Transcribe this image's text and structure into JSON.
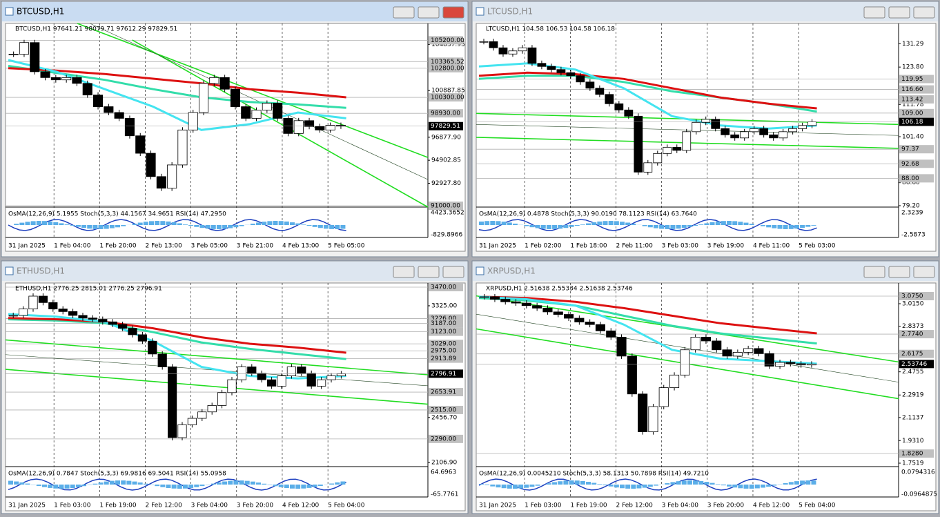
{
  "windows": [
    {
      "title": "BTCUSD,H1",
      "header": "BTCUSD,H1  97641.21 98079.71 97612.29 97829.51",
      "ylim": [
        90882,
        106642
      ],
      "price_ticks": [
        104837.95,
        100887.85,
        {
          "value": 96877.9,
          "label": "96877.90"
        },
        94902.85,
        {
          "value": 92927.8,
          "label": "92927.80"
        }
      ],
      "price_marks": [
        {
          "value": 105200,
          "label": "105200.00"
        },
        103365.52,
        {
          "value": 102800,
          "label": "102800.00"
        },
        {
          "value": 100300,
          "label": "100300.00"
        },
        {
          "value": 98930,
          "label": "98930.00"
        },
        {
          "value": 91000,
          "label": "91000.00"
        }
      ],
      "current": 97829.51,
      "closes": [
        104000,
        105000,
        102500,
        102000,
        101800,
        102000,
        101500,
        100500,
        99500,
        99000,
        98500,
        97000,
        95500,
        93500,
        92500,
        94500,
        97500,
        99000,
        101500,
        102000,
        101000,
        99500,
        98500,
        99200,
        99800,
        98500,
        97200,
        98300,
        97800,
        97500,
        97900,
        97829.51
      ],
      "ma": {
        "red": [
          102800,
          102600,
          102300,
          101900,
          101500,
          101000,
          100700,
          100300
        ],
        "cyan": [
          103500,
          102500,
          101000,
          99500,
          97500,
          98000,
          99000,
          98500
        ],
        "teal": [
          103000,
          102400,
          101800,
          101000,
          100300,
          99900,
          99700,
          99400
        ]
      },
      "indicator": {
        "label": "OsMA(12,26,9) 5.1955  Stoch(5,3,3) 44.1567 34.9651  RSI(14) 47.2950",
        "axis": [
          "4423.3652",
          "-829.8966"
        ]
      },
      "time_labels": [
        "31 Jan 2025",
        "1 Feb 04:00",
        "1 Feb 20:00",
        "2 Feb 13:00",
        "3 Feb 05:00",
        "3 Feb 21:00",
        "4 Feb 13:00",
        "5 Feb 05:00"
      ]
    },
    {
      "title": "LTCUSD,H1",
      "header": "LTCUSD,H1  104.58 106.53 104.58 106.18",
      "ylim": [
        78.75,
        137.83
      ],
      "price_ticks": [
        131.29,
        {
          "value": 123.8,
          "label": "123.80"
        },
        111.78,
        {
          "value": 101.4,
          "label": "101.40"
        },
        {
          "value": 86.6,
          "label": "86.60"
        },
        {
          "value": 79.2,
          "label": "79.20"
        }
      ],
      "price_marks": [
        119.95,
        {
          "value": 116.6,
          "label": "116.60"
        },
        113.42,
        {
          "value": 109,
          "label": "109.00"
        },
        97.37,
        92.68,
        {
          "value": 88,
          "label": "88.00"
        }
      ],
      "current": 106.18,
      "closes": [
        132,
        130,
        128,
        129,
        130,
        125,
        124,
        123,
        122,
        121,
        119,
        117,
        115,
        112,
        110,
        108,
        90,
        93,
        96,
        98,
        97,
        103,
        106,
        107,
        104,
        102,
        101,
        103,
        104,
        102,
        101,
        103,
        104,
        105,
        106.18
      ],
      "ma": {
        "red": [
          121,
          122,
          121.5,
          120,
          117,
          114,
          112,
          110.5
        ],
        "cyan": [
          124,
          125,
          123,
          117,
          108,
          105,
          104,
          105
        ],
        "teal": [
          120,
          121,
          121,
          119,
          116,
          114,
          112,
          109.5
        ]
      },
      "indicator": {
        "label": "OsMA(12,26,9) 0.4878  Stoch(5,3,3) 90.0190 78.1123  RSI(14) 63.7640",
        "axis": [
          "2.3239",
          "-2.5873"
        ]
      },
      "time_labels": [
        "31 Jan 2025",
        "1 Feb 02:00",
        "1 Feb 18:00",
        "2 Feb 11:00",
        "3 Feb 03:00",
        "3 Feb 19:00",
        "4 Feb 11:00",
        "5 Feb 03:00"
      ]
    },
    {
      "title": "ETHUSD,H1",
      "header": "ETHUSD,H1  2776.25 2815.01 2776.25 2796.91",
      "ylim": [
        2074.7,
        3502
      ],
      "price_ticks": [
        {
          "value": 3325,
          "label": "3325.00"
        },
        {
          "value": 2456.7,
          "label": "2456.70"
        },
        {
          "value": 2106.9,
          "label": "2106.90"
        }
      ],
      "price_marks": [
        {
          "value": 3470,
          "label": "3470.00"
        },
        {
          "value": 3226,
          "label": "3226.00"
        },
        {
          "value": 3187,
          "label": "3187.00"
        },
        {
          "value": 3123,
          "label": "3123.00"
        },
        {
          "value": 3029,
          "label": "3029.00"
        },
        {
          "value": 2975,
          "label": "2975.00"
        },
        2913.89,
        2653.91,
        {
          "value": 2515,
          "label": "2515.00"
        },
        {
          "value": 2290,
          "label": "2290.00"
        }
      ],
      "current": 2796.91,
      "closes": [
        3250,
        3300,
        3400,
        3350,
        3300,
        3280,
        3250,
        3230,
        3220,
        3200,
        3180,
        3150,
        3100,
        3050,
        2950,
        2850,
        2300,
        2400,
        2450,
        2500,
        2550,
        2650,
        2750,
        2850,
        2800,
        2750,
        2700,
        2780,
        2850,
        2800,
        2700,
        2750,
        2780,
        2796.91
      ],
      "ma": {
        "red": [
          3230,
          3220,
          3200,
          3150,
          3080,
          3030,
          3000,
          2960
        ],
        "cyan": [
          3260,
          3240,
          3200,
          3050,
          2850,
          2780,
          2760,
          2780
        ],
        "teal": [
          3220,
          3210,
          3190,
          3120,
          3040,
          2990,
          2950,
          2910
        ]
      },
      "indicator": {
        "label": "OsMA(12,26,9) 0.7847  Stoch(5,3,3) 69.9816 69.5041  RSI(14) 55.0958",
        "axis": [
          "64.6963",
          "-65.7761"
        ]
      },
      "time_labels": [
        "31 Jan 2025",
        "1 Feb 03:00",
        "1 Feb 19:00",
        "2 Feb 12:00",
        "3 Feb 04:00",
        "3 Feb 20:00",
        "4 Feb 12:00",
        "5 Feb 04:00"
      ]
    },
    {
      "title": "XRPUSD,H1",
      "header": "XRPUSD,H1  2.51638 2.55334 2.51638 2.53746",
      "ylim": [
        1.7246,
        3.179
      ],
      "price_ticks": [
        {
          "value": 3.015,
          "label": "3.0150"
        },
        2.8373,
        2.4755,
        2.2919,
        2.1137,
        {
          "value": 1.931,
          "label": "1.9310"
        },
        1.7519
      ],
      "price_marks": [
        {
          "value": 3.075,
          "label": "3.0750"
        },
        {
          "value": 2.774,
          "label": "2.7740"
        },
        2.6175,
        {
          "value": 1.828,
          "label": "1.8280"
        }
      ],
      "current": 2.53746,
      "closes": [
        3.07,
        3.05,
        3.03,
        3.02,
        3.0,
        2.98,
        2.95,
        2.93,
        2.9,
        2.87,
        2.85,
        2.8,
        2.75,
        2.6,
        2.3,
        2.0,
        2.2,
        2.35,
        2.45,
        2.65,
        2.75,
        2.72,
        2.65,
        2.6,
        2.63,
        2.66,
        2.62,
        2.52,
        2.55,
        2.54,
        2.53,
        2.53746
      ],
      "ma": {
        "red": [
          3.07,
          3.06,
          3.03,
          2.98,
          2.92,
          2.86,
          2.82,
          2.78
        ],
        "cyan": [
          3.07,
          3.05,
          3.0,
          2.85,
          2.65,
          2.58,
          2.56,
          2.54
        ],
        "teal": [
          3.06,
          3.04,
          3.0,
          2.92,
          2.84,
          2.78,
          2.74,
          2.7
        ]
      },
      "indicator": {
        "label": "OsMA(12,26,9) 0.0045210  Stoch(5,3,3) 58.1313 50.7898  RSI(14) 49.7210",
        "axis": [
          "0.0794316",
          "-0.0964875"
        ]
      },
      "time_labels": [
        "31 Jan 2025",
        "1 Feb 03:00",
        "1 Feb 19:00",
        "2 Feb 12:00",
        "3 Feb 04:00",
        "3 Feb 20:00",
        "4 Feb 12:00",
        "5 Feb 04:00"
      ]
    }
  ]
}
